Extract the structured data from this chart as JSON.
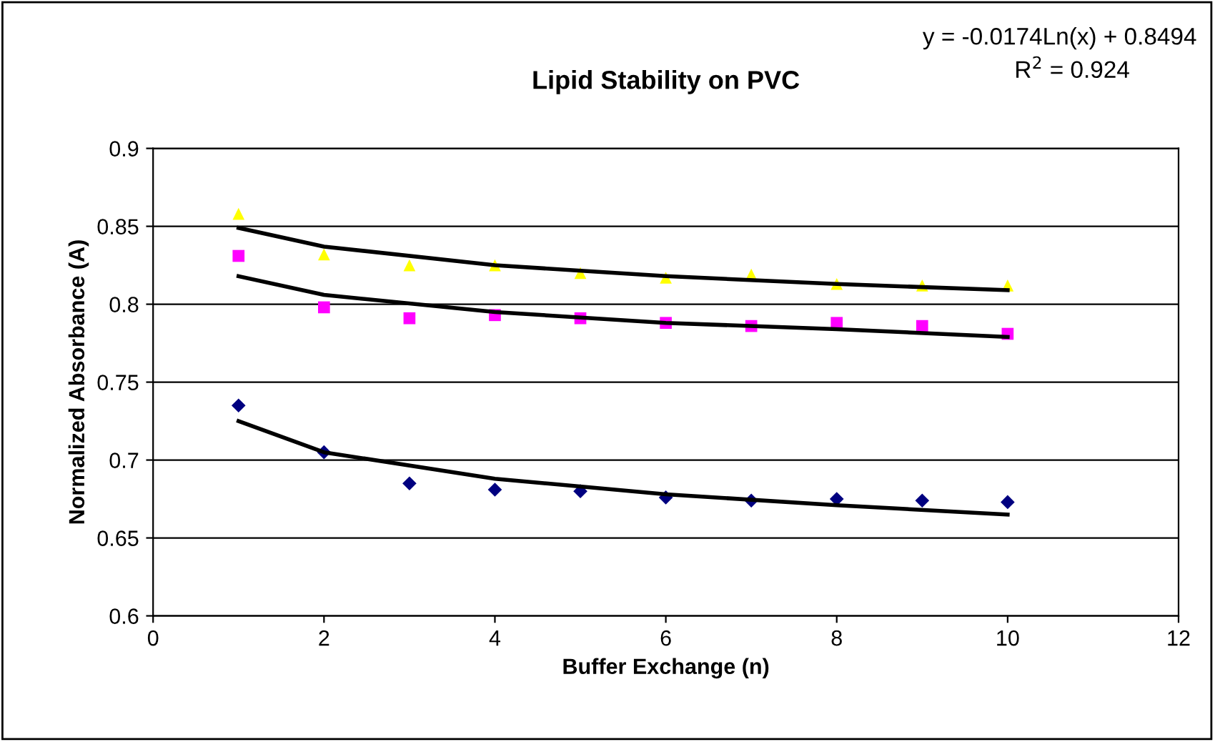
{
  "chart_data": {
    "type": "scatter",
    "title": "Lipid Stability on PVC",
    "xlabel": "Buffer Exchange (n)",
    "ylabel": "Normalized Absorbance (A)",
    "annotations": [
      "y = -0.0174Ln(x) + 0.8494",
      "R$^{2}$ = 0.924"
    ],
    "x": [
      1,
      2,
      3,
      4,
      5,
      6,
      7,
      8,
      9,
      10
    ],
    "series": [
      {
        "color": "#ffff00",
        "marker": "triangle",
        "values": [
          0.858,
          0.832,
          0.825,
          0.825,
          0.82,
          0.817,
          0.819,
          0.813,
          0.812,
          0.812
        ]
      },
      {
        "color": "#ff00ff",
        "marker": "square",
        "values": [
          0.831,
          0.798,
          0.791,
          0.793,
          0.791,
          0.788,
          0.786,
          0.788,
          0.786,
          0.781
        ]
      },
      {
        "color": "#000080",
        "marker": "diamond",
        "values": [
          0.735,
          0.705,
          0.685,
          0.681,
          0.68,
          0.676,
          0.674,
          0.675,
          0.674,
          0.673
        ]
      },
      {
        "type": "line",
        "color": "#000000",
        "marker": "none",
        "x": [
          1,
          2,
          4,
          6,
          8,
          10
        ],
        "values": [
          0.849,
          0.837,
          0.825,
          0.818,
          0.813,
          0.809
        ]
      },
      {
        "type": "line",
        "color": "#000000",
        "marker": "none",
        "x": [
          1,
          2,
          4,
          6,
          8,
          10
        ],
        "values": [
          0.818,
          0.806,
          0.795,
          0.788,
          0.784,
          0.779
        ]
      },
      {
        "type": "line",
        "color": "#000000",
        "marker": "none",
        "x": [
          1,
          2,
          4,
          6,
          8,
          10
        ],
        "values": [
          0.725,
          0.705,
          0.688,
          0.678,
          0.671,
          0.665
        ]
      }
    ],
    "xlim": [
      0,
      12
    ],
    "xticks": [
      0,
      2,
      4,
      6,
      8,
      10,
      12
    ],
    "ylim": [
      0.6,
      0.9
    ],
    "yticks": [
      0.6,
      0.65,
      0.7,
      0.75,
      0.8,
      0.85,
      0.9
    ],
    "grid": "y"
  }
}
